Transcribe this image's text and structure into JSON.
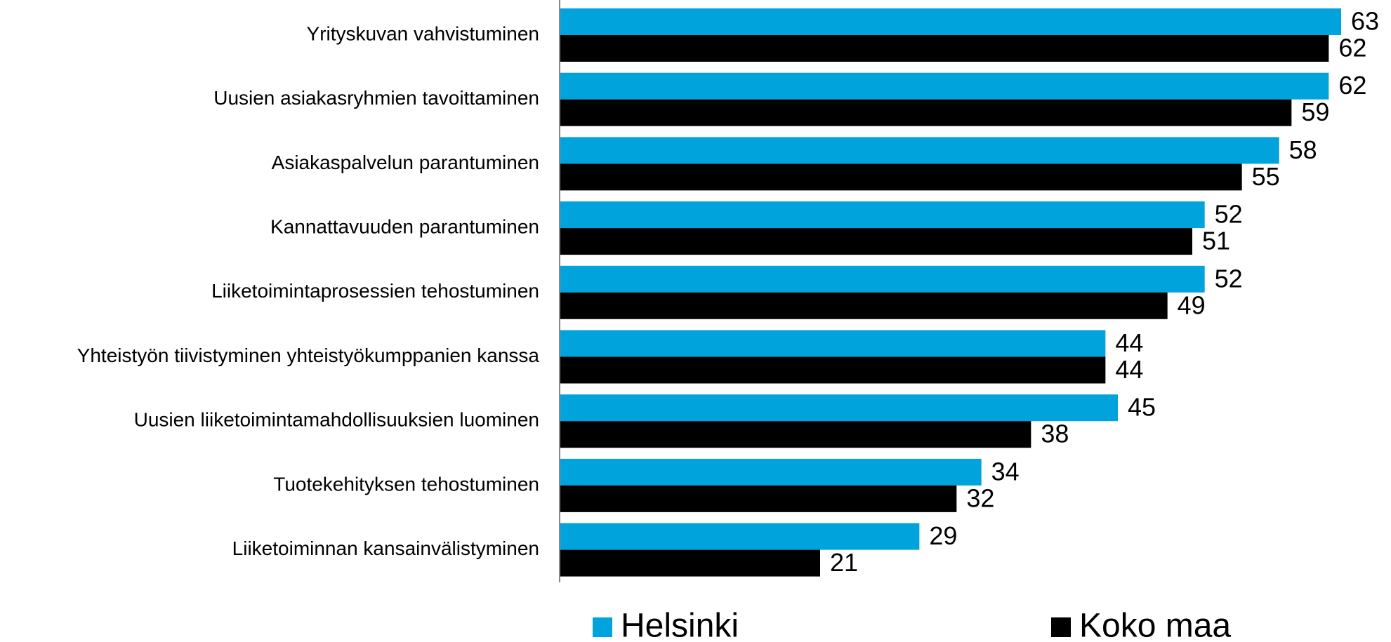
{
  "chart_data": {
    "type": "barh",
    "categories": [
      "Yrityskuvan vahvistuminen",
      "Uusien asiakasryhmien tavoittaminen",
      "Asiakaspalvelun parantuminen",
      "Kannattavuuden parantuminen",
      "Liiketoimintaprosessien tehostuminen",
      "Yhteistyön tiivistyminen yhteistyökumppanien kanssa",
      "Uusien liiketoimintamahdollisuuksien luominen",
      "Tuotekehityksen tehostuminen",
      "Liiketoiminnan kansainvälistyminen"
    ],
    "series": [
      {
        "name": "Helsinki",
        "color": "#00a3dc",
        "values": [
          63,
          62,
          58,
          52,
          52,
          44,
          45,
          34,
          29
        ]
      },
      {
        "name": "Koko maa",
        "color": "#000000",
        "values": [
          62,
          59,
          55,
          51,
          49,
          44,
          38,
          32,
          21
        ]
      }
    ],
    "legend": "bottom"
  }
}
